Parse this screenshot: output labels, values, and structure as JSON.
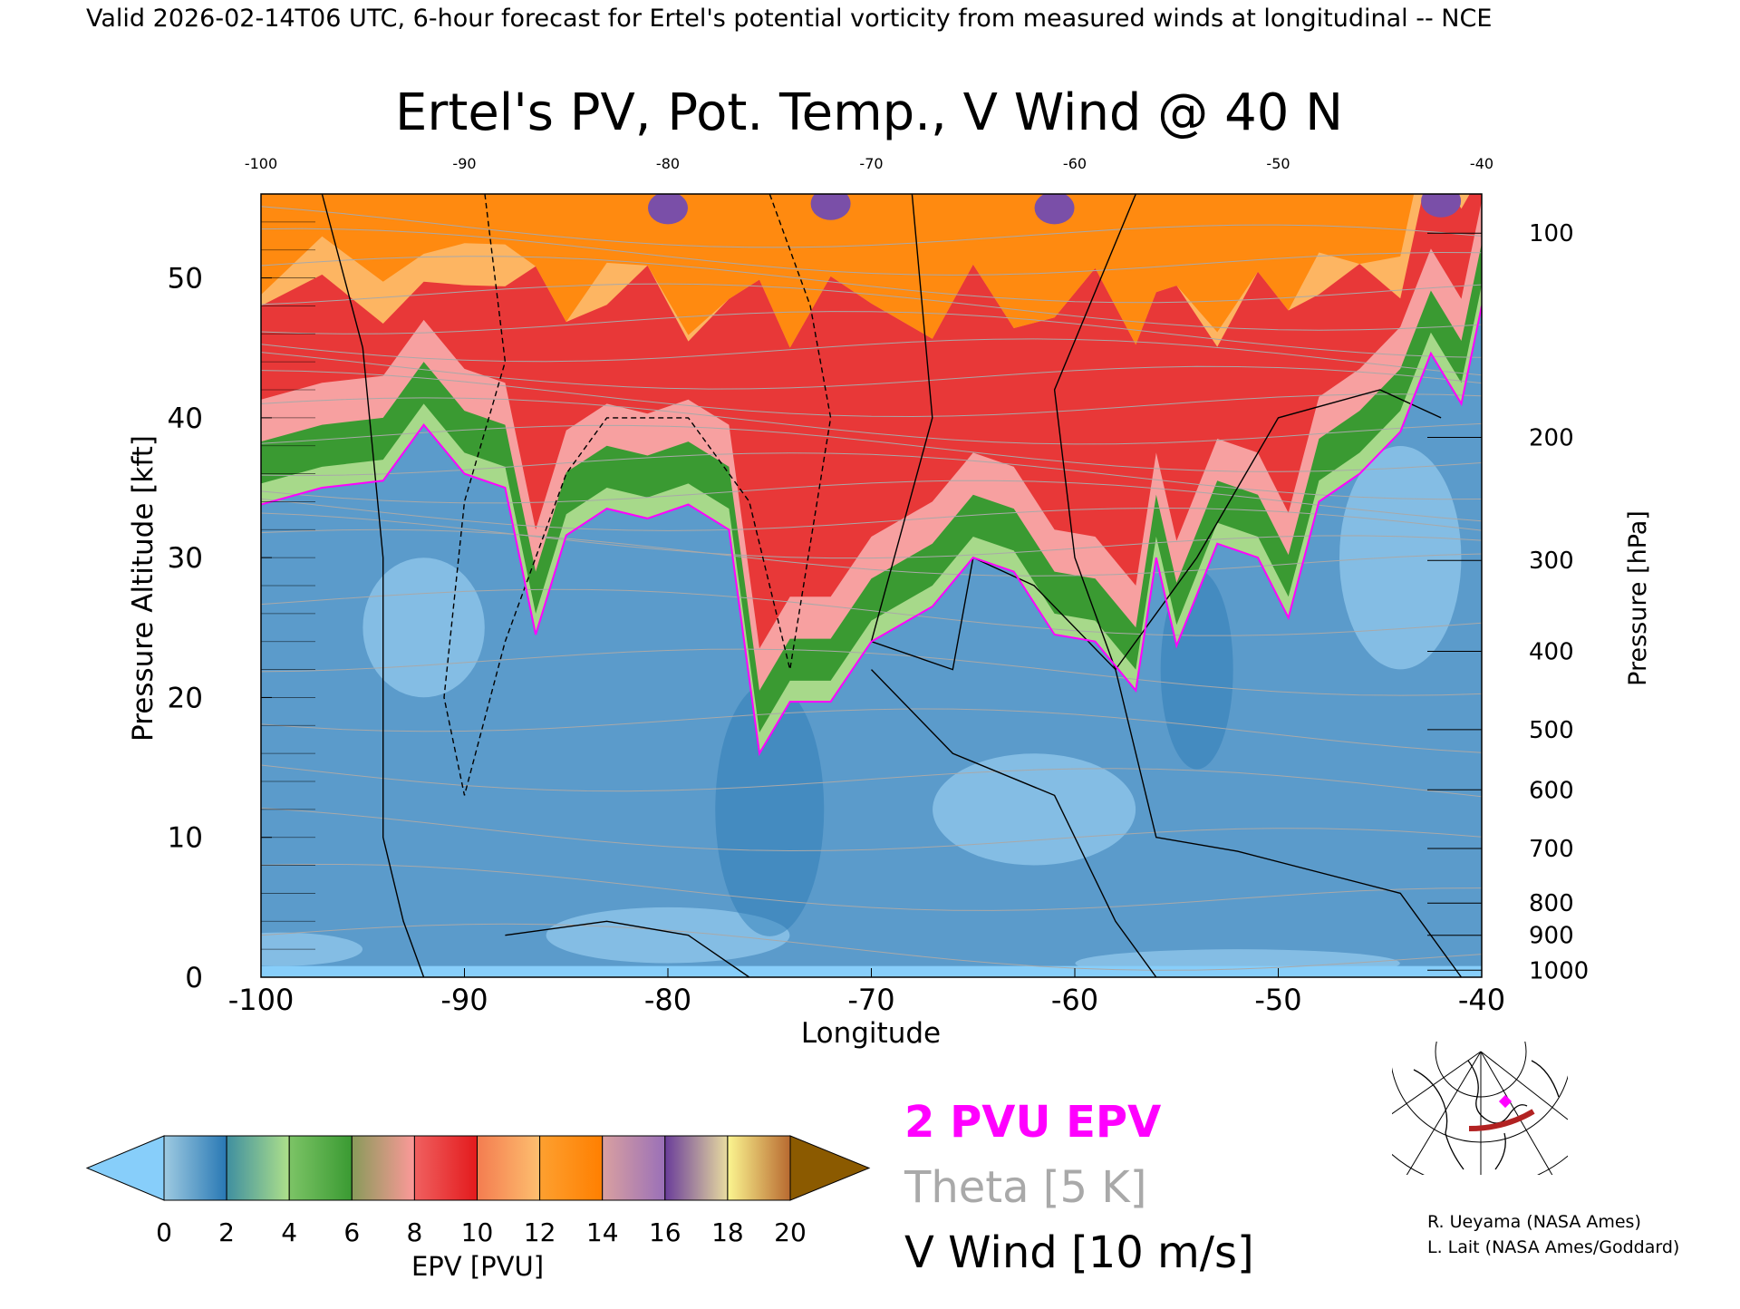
{
  "header": {
    "top_line": "Valid 2026-02-14T06 UTC, 6-hour forecast for Ertel's potential vorticity from measured winds at longitudinal -- NCE"
  },
  "chart_data": {
    "type": "heatmap",
    "title": "Ertel's PV, Pot. Temp., V Wind @ 40 N",
    "xlabel": "Longitude",
    "ylabel": "Pressure Altitude [kft]",
    "ylabel_right": "Pressure [hPa]",
    "xlim": [
      -100,
      -40
    ],
    "ylim": [
      0,
      56
    ],
    "x_ticks": [
      "-100",
      "-90",
      "-80",
      "-70",
      "-60",
      "-50",
      "-40"
    ],
    "x_tick_values": [
      -100,
      -90,
      -80,
      -70,
      -60,
      -50,
      -40
    ],
    "y_ticks": [
      "0",
      "10",
      "20",
      "30",
      "40",
      "50"
    ],
    "y_tick_values": [
      0,
      10,
      20,
      30,
      40,
      50
    ],
    "pressure_ticks": [
      "100",
      "200",
      "300",
      "400",
      "500",
      "600",
      "700",
      "800",
      "900",
      "1000"
    ],
    "pressure_tick_kft": [
      53.2,
      38.6,
      29.8,
      23.3,
      17.7,
      13.4,
      9.2,
      5.3,
      3.0,
      0.5
    ],
    "pv2_surface": {
      "lon": [
        -100,
        -97,
        -94,
        -92,
        -90,
        -88,
        -86.5,
        -85,
        -83,
        -81,
        -79,
        -77,
        -75.5,
        -74,
        -72,
        -70,
        -67,
        -65,
        -63,
        -61,
        -59,
        -57,
        -56,
        -55,
        -53,
        -51,
        -49.5,
        -48,
        -46,
        -44,
        -42.5,
        -41,
        -40
      ],
      "kft": [
        33.8,
        35,
        35.5,
        39.5,
        36,
        35,
        24.5,
        31.6,
        33.5,
        32.8,
        33.8,
        32,
        16,
        19.7,
        19.7,
        24,
        26.5,
        30,
        29,
        24.5,
        24,
        20.5,
        30,
        23.7,
        31,
        30,
        25.7,
        34,
        36,
        39,
        44.6,
        41,
        48
      ]
    },
    "colorbar": {
      "label": "EPV [PVU]",
      "ticks": [
        "0",
        "2",
        "4",
        "6",
        "8",
        "10",
        "12",
        "14",
        "16",
        "18",
        "20"
      ],
      "below_color": "#87cefa",
      "above_color": "#8b5a00",
      "segments": [
        [
          "#9ecae1",
          "#2878b4"
        ],
        [
          "#3f8fa0",
          "#aee08a"
        ],
        [
          "#7cc466",
          "#3a9a32"
        ],
        [
          "#889a5a",
          "#fd9999"
        ],
        [
          "#f06060",
          "#e31a1c"
        ],
        [
          "#f47c50",
          "#fdbf6f"
        ],
        [
          "#fda030",
          "#ff7f00"
        ],
        [
          "#d9a0a0",
          "#9a70b8"
        ],
        [
          "#6a3d9a",
          "#e8dca0"
        ],
        [
          "#fbf590",
          "#b86a30"
        ]
      ]
    }
  },
  "legend": {
    "pv_label": "2 PVU EPV",
    "theta_label": "Theta [5 K]",
    "wind_label": "V Wind [10 m/s]",
    "pv_color": "#ff00ff",
    "theta_color": "#a9a9a9",
    "wind_color": "#000000"
  },
  "credits": {
    "line1": "R. Ueyama (NASA Ames)",
    "line2": "L. Lait (NASA Ames/Goddard)"
  }
}
